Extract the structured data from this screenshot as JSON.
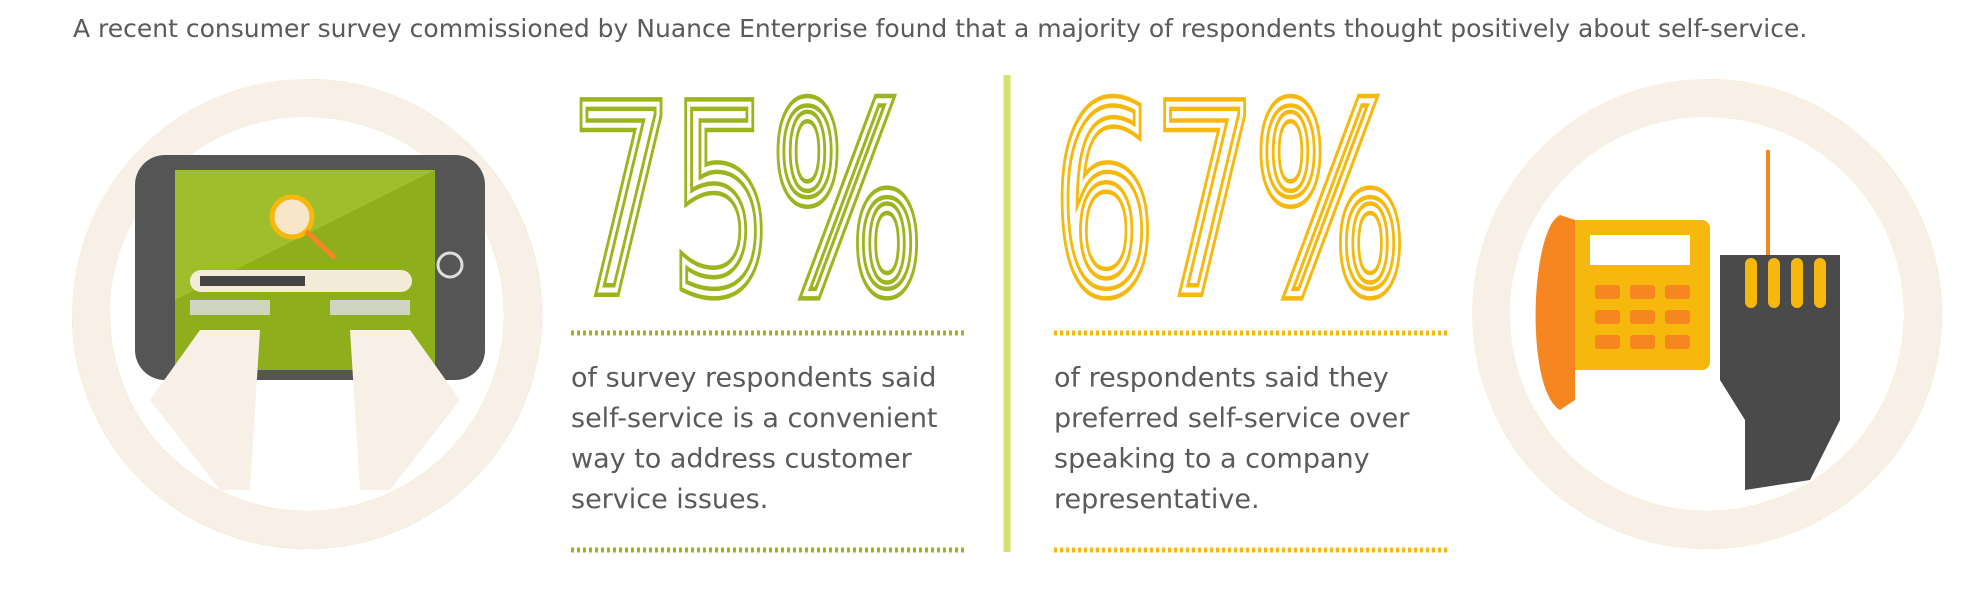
{
  "intro": "A recent consumer survey commissioned by Nuance Enterprise found that a majority of respondents thought positively about self-service.",
  "stats": [
    {
      "value": 75,
      "label": "75%",
      "color": "#9bb51e",
      "text": [
        "of survey respondents said",
        "self-service is a convenient",
        "way to address customer",
        "service issues."
      ]
    },
    {
      "value": 67,
      "label": "67%",
      "color": "#f6b80c",
      "text": [
        "of respondents said they",
        "preferred self-service over",
        "speaking to a company",
        "representative."
      ]
    }
  ]
}
